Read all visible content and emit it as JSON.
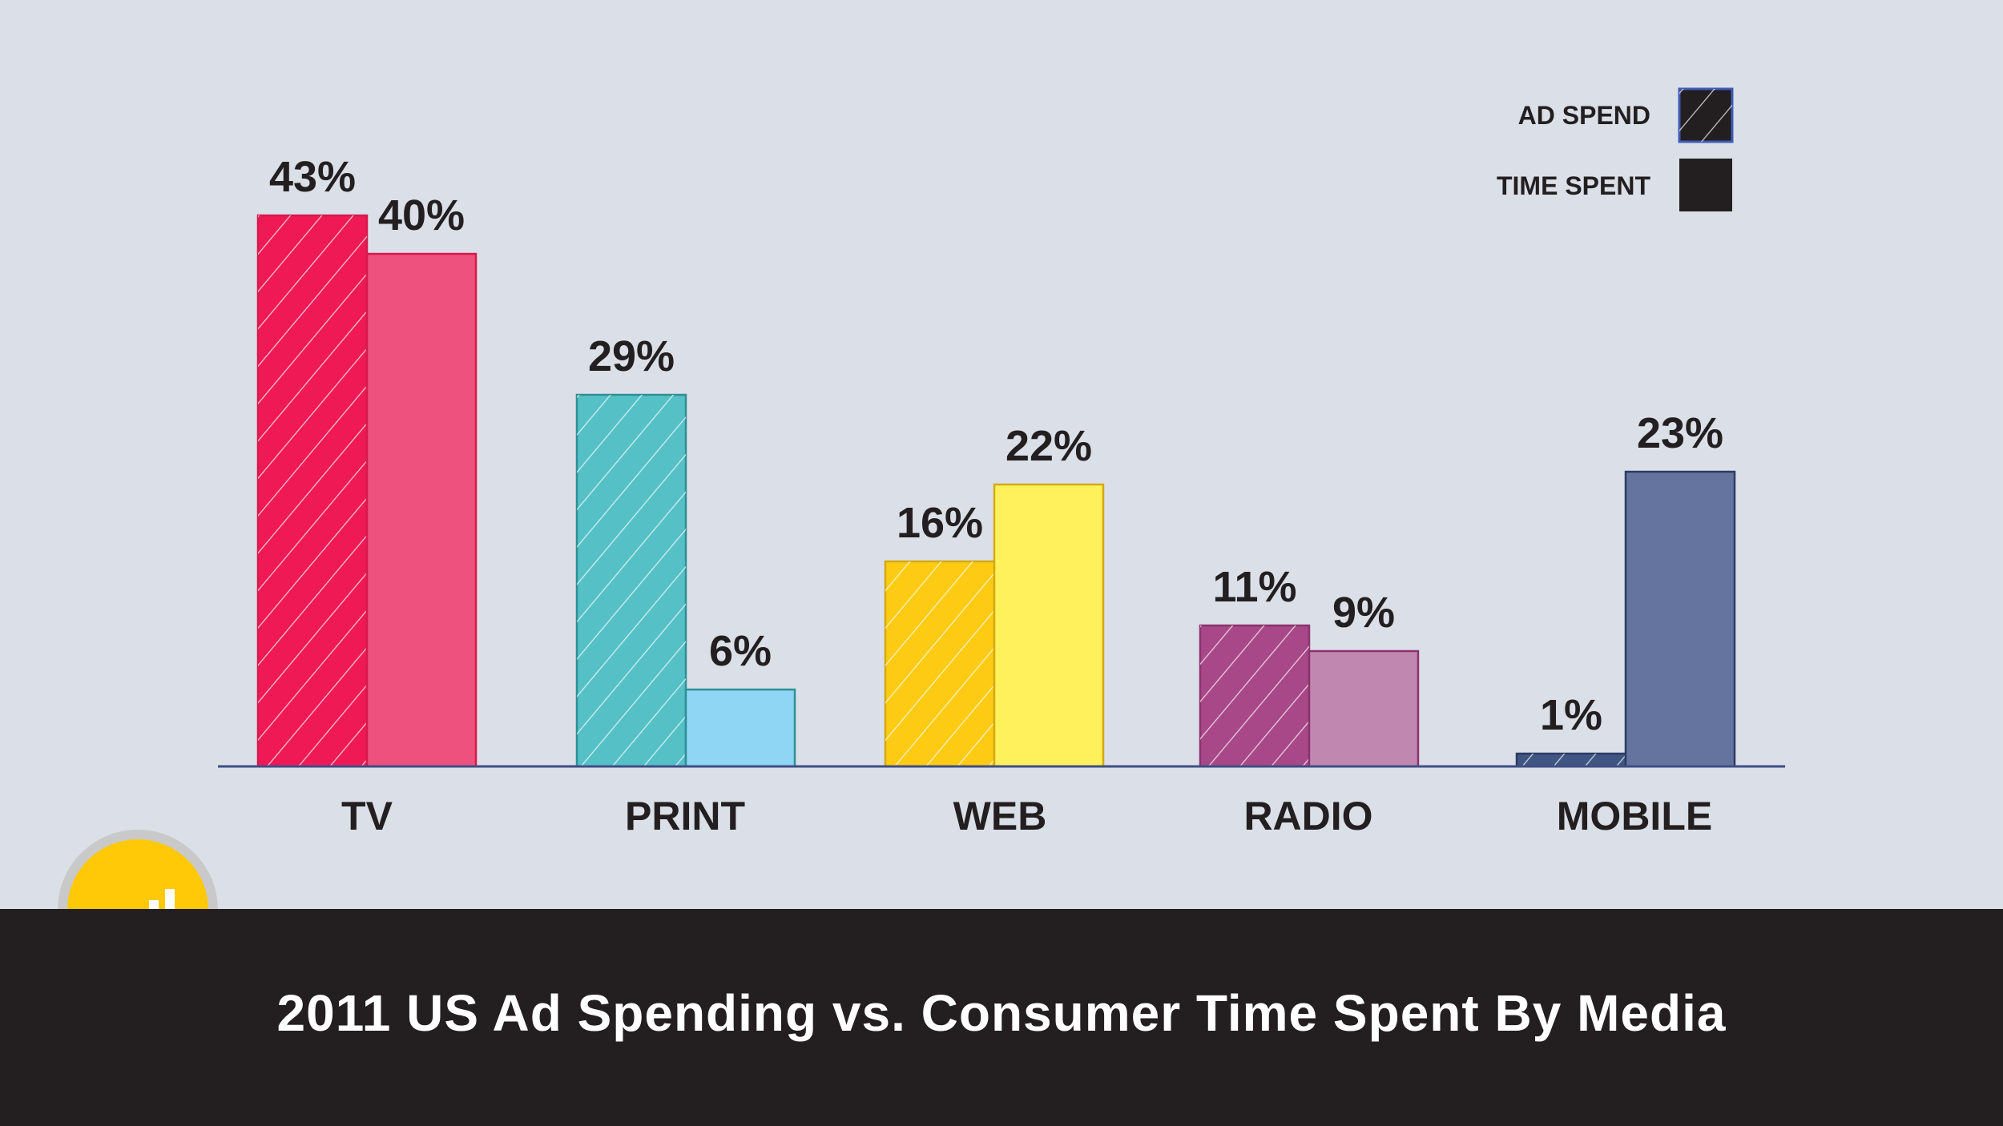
{
  "chart_data": {
    "type": "bar",
    "title": "2011 US Ad Spending vs. Consumer Time Spent By Media",
    "categories": [
      "TV",
      "PRINT",
      "WEB",
      "RADIO",
      "MOBILE"
    ],
    "series": [
      {
        "name": "AD SPEND",
        "values": [
          43,
          29,
          16,
          11,
          1
        ],
        "labels": [
          "43%",
          "29%",
          "16%",
          "11%",
          "1%"
        ],
        "pattern": "hatched"
      },
      {
        "name": "TIME SPENT",
        "values": [
          40,
          6,
          22,
          9,
          23
        ],
        "labels": [
          "40%",
          "6%",
          "22%",
          "9%",
          "23%"
        ],
        "pattern": "solid"
      }
    ],
    "ylim": [
      0,
      45
    ],
    "xlabel": "",
    "ylabel": "",
    "legend": {
      "position": "top-right",
      "entries": [
        "AD SPEND",
        "TIME SPENT"
      ]
    },
    "grid": false
  },
  "colors": {
    "ad_spend": [
      "#ef1a55",
      "#55c1c7",
      "#fdcb13",
      "#a84889",
      "#415582"
    ],
    "time_spent": [
      "#ee517d",
      "#8fd5f4",
      "#fff15c",
      "#c088b0",
      "#65739f"
    ],
    "borders": [
      "#d6194d",
      "#2f8f96",
      "#d4a911",
      "#8b336f",
      "#2c3c66"
    ],
    "axis": "#3f4e86",
    "text": "#231f20",
    "footer": "#231f20",
    "badge": "#ffc907"
  },
  "footer": {
    "title": "2011 US Ad Spending vs. Consumer Time Spent By Media"
  },
  "badge": {
    "icon": "signal-bars-icon"
  }
}
